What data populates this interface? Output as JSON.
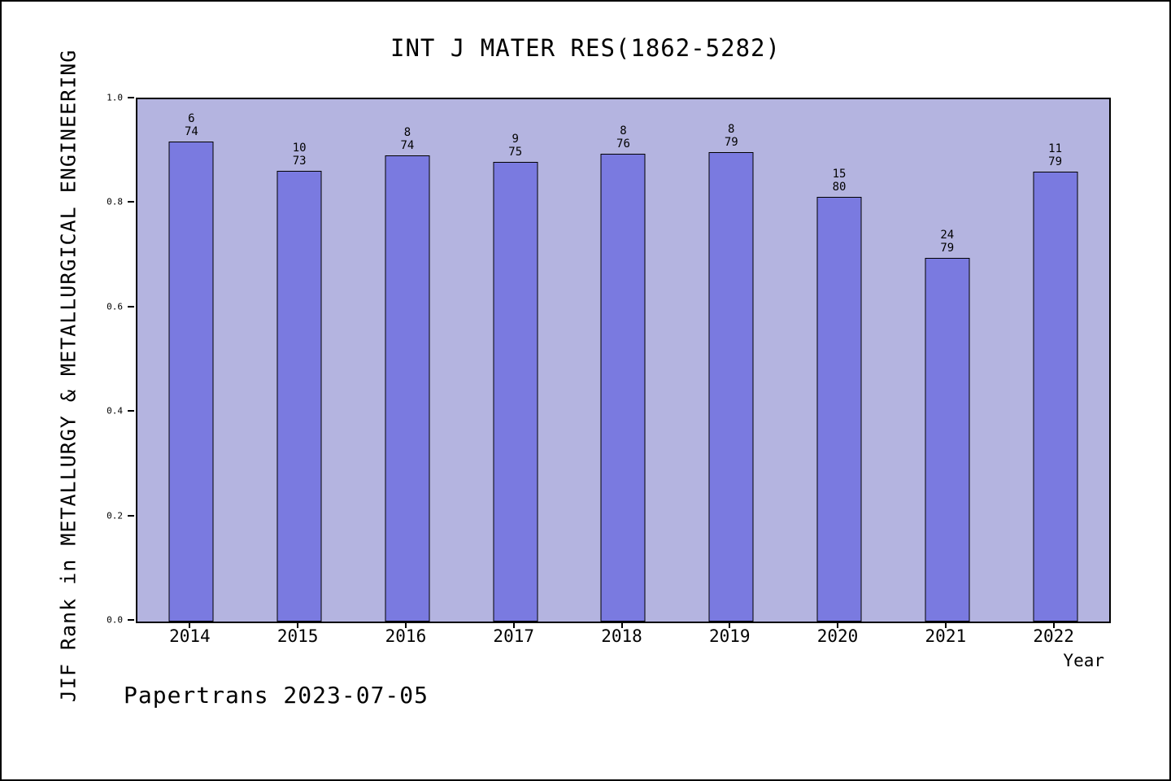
{
  "chart_data": {
    "type": "bar",
    "title": "INT J MATER RES(1862-5282)",
    "xlabel": "Year",
    "ylabel": "JIF Rank in METALLURGY & METALLURGICAL ENGINEERING",
    "categories": [
      "2014",
      "2015",
      "2016",
      "2017",
      "2018",
      "2019",
      "2020",
      "2021",
      "2022"
    ],
    "values": [
      0.919,
      0.863,
      0.892,
      0.88,
      0.895,
      0.899,
      0.813,
      0.696,
      0.861
    ],
    "annotations": [
      {
        "rank": "6",
        "total": "74"
      },
      {
        "rank": "10",
        "total": "73"
      },
      {
        "rank": "8",
        "total": "74"
      },
      {
        "rank": "9",
        "total": "75"
      },
      {
        "rank": "8",
        "total": "76"
      },
      {
        "rank": "8",
        "total": "79"
      },
      {
        "rank": "15",
        "total": "80"
      },
      {
        "rank": "24",
        "total": "79"
      },
      {
        "rank": "11",
        "total": "79"
      }
    ],
    "ylim": [
      0.0,
      1.0
    ],
    "yticks": [
      "0.0",
      "0.2",
      "0.4",
      "0.6",
      "0.8",
      "1.0"
    ],
    "grid": false,
    "legend_position": "none",
    "bar_color": "#7a7ae0",
    "plot_bg_color": "#b4b4e0"
  },
  "footer": {
    "text": "Papertrans 2023-07-05"
  }
}
